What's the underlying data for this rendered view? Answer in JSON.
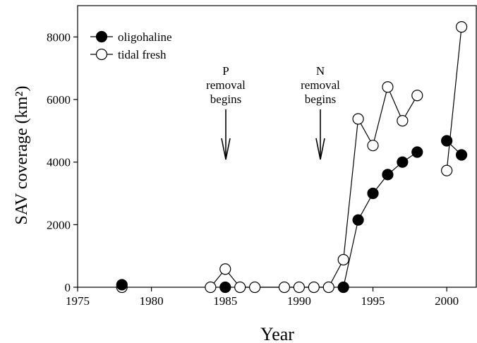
{
  "chart_data": {
    "type": "line",
    "xlabel": "Year",
    "ylabel": "SAV coverage (km²)",
    "xlim": [
      1975,
      2002
    ],
    "xticks": [
      1975,
      1980,
      1985,
      1990,
      1995,
      2000
    ],
    "ylim": [
      0,
      9000
    ],
    "yticks": [
      0,
      2000,
      4000,
      6000,
      8000
    ],
    "legend": "upper left",
    "annotations": [
      {
        "lines": [
          "P",
          "removal",
          "begins"
        ]
      },
      {
        "lines": [
          "N",
          "removal",
          "begins"
        ]
      }
    ],
    "series": [
      {
        "name": "oligohaline",
        "color": "#000000",
        "x": [
          1978,
          1979,
          1985,
          1986,
          1993,
          1994,
          1995,
          1996,
          1997,
          1998,
          1999,
          2000,
          2001
        ],
        "values": [
          80,
          null,
          0,
          null,
          0,
          2150,
          3000,
          3600,
          4000,
          4320,
          null,
          4680,
          4230
        ]
      },
      {
        "name": "tidal fresh",
        "color": "#ffffff",
        "x": [
          1978,
          1983,
          1984,
          1985,
          1986,
          1987,
          1989,
          1990,
          1991,
          1992,
          1993,
          1994,
          1995,
          1996,
          1997,
          1998,
          1999,
          2000,
          2001
        ],
        "values": [
          0,
          null,
          0,
          580,
          0,
          0,
          0,
          0,
          0,
          0,
          880,
          5380,
          4530,
          6400,
          5320,
          6130,
          null,
          3730,
          8320
        ]
      }
    ]
  }
}
